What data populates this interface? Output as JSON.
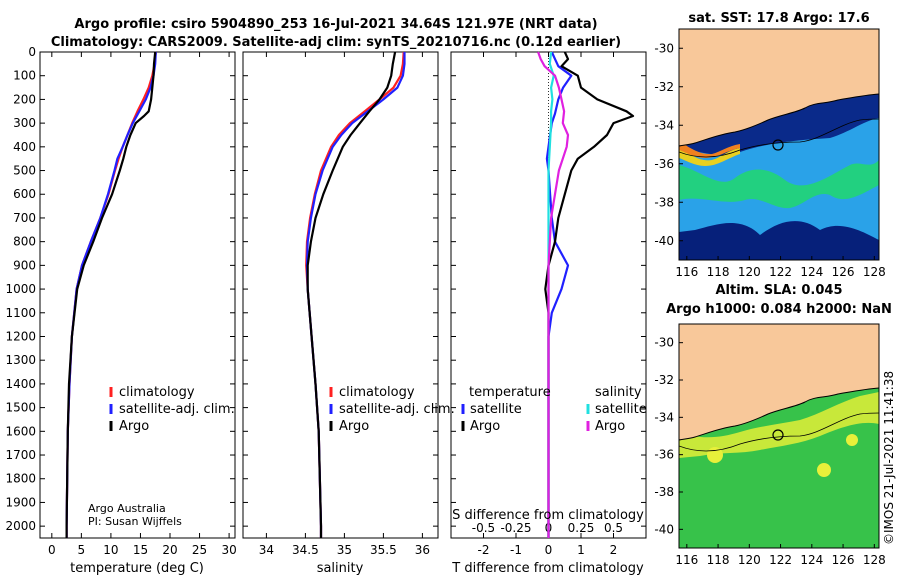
{
  "header": {
    "title_line1": "Argo profile: csiro 5904890_253 16-Jul-2021 34.64S 121.97E (NRT data)",
    "title_line2": "Climatology: CARS2009. Satellite-adj clim: synTS_20210716.nc (0.12d earlier)"
  },
  "footer": {
    "credit_line1": "Argo Australia",
    "credit_line2": "PI: Susan Wijffels",
    "stamp": "©IMOS 21-Jul-2021 11:41:38"
  },
  "legends": {
    "temperature": [
      "climatology",
      "satellite-adj. clim.",
      "Argo"
    ],
    "salinity": [
      "climatology",
      "satellite-adj. clim.",
      "Argo"
    ],
    "difference": {
      "temperature_header": "temperature",
      "salinity_header": "salinity",
      "temperature_items": [
        "satellite",
        "Argo"
      ],
      "salinity_items": [
        "satellite",
        "Argo"
      ]
    }
  },
  "maps": {
    "sst_title": "sat. SST: 17.8 Argo: 17.6",
    "sla_title_line1": "Altim. SLA: 0.045",
    "sla_title_line2": "Argo h1000: 0.084 h2000: NaN",
    "lon_ticks": [
      "116",
      "118",
      "120",
      "122",
      "124",
      "126",
      "128"
    ],
    "lat_ticks": [
      "-30",
      "-32",
      "-34",
      "-36",
      "-38",
      "-40"
    ],
    "float_position": {
      "lon": 121.97,
      "lat": -34.64
    },
    "lon_range": [
      115.5,
      128.3
    ],
    "lat_range": [
      -41,
      -29
    ],
    "colors": {
      "land": "#f8c89a",
      "ocean_sst": "#0a2a8a",
      "ocean_sla": "#37c24a"
    }
  },
  "colors": {
    "climatology": "#ff2020",
    "satellite": "#2020ff",
    "argo": "#000000",
    "sat_salinity": "#20e0e0",
    "argo_salinity": "#e020e0"
  },
  "chart_data": [
    {
      "type": "line",
      "name": "temperature",
      "xlabel": "temperature (deg C)",
      "ylabel": "",
      "xlim": [
        -2,
        31
      ],
      "ylim": [
        2050,
        0
      ],
      "xticks": [
        0,
        5,
        10,
        15,
        20,
        25,
        30
      ],
      "yticks": [
        0,
        100,
        200,
        300,
        400,
        500,
        600,
        700,
        800,
        900,
        1000,
        1100,
        1200,
        1300,
        1400,
        1500,
        1600,
        1700,
        1800,
        1900,
        2000
      ],
      "series": [
        {
          "name": "climatology",
          "color": "#ff2020",
          "y": [
            0,
            50,
            100,
            150,
            200,
            250,
            300,
            350,
            400,
            450,
            500,
            600,
            700,
            800,
            900,
            1000,
            1200,
            1400,
            1600,
            2000,
            2050
          ],
          "x": [
            17.6,
            17.4,
            17.0,
            16.4,
            15.5,
            14.5,
            13.6,
            12.8,
            12.0,
            11.3,
            10.7,
            9.6,
            8.2,
            6.6,
            5.1,
            4.2,
            3.4,
            3.0,
            2.7,
            2.5,
            2.5
          ]
        },
        {
          "name": "satellite-adj. clim.",
          "color": "#2020ff",
          "y": [
            0,
            50,
            100,
            150,
            200,
            250,
            300,
            350,
            400,
            450,
            500,
            600,
            700,
            800,
            900,
            1000,
            1200,
            1400,
            1600,
            2000,
            2050
          ],
          "x": [
            17.6,
            17.5,
            17.2,
            16.7,
            15.9,
            14.8,
            13.7,
            12.8,
            12.0,
            11.1,
            10.6,
            9.5,
            8.2,
            6.6,
            5.1,
            4.2,
            3.4,
            3.0,
            2.7,
            2.5,
            2.5
          ]
        },
        {
          "name": "Argo",
          "color": "#000000",
          "y": [
            0,
            50,
            100,
            150,
            200,
            250,
            270,
            300,
            350,
            400,
            450,
            500,
            600,
            700,
            800,
            900,
            1000,
            1200,
            1400,
            1600,
            2000,
            2050
          ],
          "x": [
            17.5,
            17.3,
            17.2,
            17.0,
            16.8,
            16.4,
            15.6,
            14.2,
            13.3,
            12.6,
            12.1,
            11.5,
            10.2,
            8.5,
            7.0,
            5.4,
            4.3,
            3.4,
            2.9,
            2.7,
            2.5,
            2.5
          ]
        }
      ]
    },
    {
      "type": "line",
      "name": "salinity",
      "xlabel": "salinity",
      "ylabel": "",
      "xlim": [
        33.7,
        36.2
      ],
      "ylim": [
        2050,
        0
      ],
      "xticks": [
        34,
        34.5,
        35,
        35.5,
        36
      ],
      "series": [
        {
          "name": "climatology",
          "color": "#ff2020",
          "y": [
            0,
            50,
            100,
            150,
            200,
            250,
            300,
            350,
            400,
            500,
            600,
            700,
            800,
            900,
            1000,
            1200,
            1400,
            1600,
            2000,
            2050
          ],
          "x": [
            35.76,
            35.75,
            35.72,
            35.63,
            35.45,
            35.26,
            35.07,
            34.93,
            34.83,
            34.7,
            34.62,
            34.56,
            34.52,
            34.51,
            34.53,
            34.58,
            34.63,
            34.67,
            34.7,
            34.7
          ]
        },
        {
          "name": "satellite-adj. clim.",
          "color": "#2020ff",
          "y": [
            0,
            50,
            100,
            150,
            200,
            250,
            300,
            350,
            400,
            500,
            600,
            700,
            800,
            900,
            1000,
            1200,
            1400,
            1600,
            2000,
            2050
          ],
          "x": [
            35.77,
            35.77,
            35.75,
            35.68,
            35.5,
            35.3,
            35.1,
            34.96,
            34.85,
            34.72,
            34.63,
            34.57,
            34.53,
            34.52,
            34.53,
            34.58,
            34.63,
            34.67,
            34.7,
            34.7
          ]
        },
        {
          "name": "Argo",
          "color": "#000000",
          "y": [
            0,
            50,
            100,
            150,
            200,
            250,
            300,
            350,
            400,
            500,
            600,
            700,
            800,
            900,
            1000,
            1200,
            1400,
            1600,
            2000,
            2050
          ],
          "x": [
            35.65,
            35.62,
            35.6,
            35.55,
            35.45,
            35.32,
            35.2,
            35.08,
            34.98,
            34.85,
            34.73,
            34.63,
            34.57,
            34.53,
            34.53,
            34.58,
            34.63,
            34.67,
            34.7,
            34.7
          ]
        }
      ]
    },
    {
      "type": "line",
      "name": "difference",
      "xlabel": "T difference from climatology",
      "top_label": "S difference from climatology",
      "xlim": [
        -3,
        3
      ],
      "ylim": [
        2050,
        0
      ],
      "xticks": [
        -2,
        -1,
        0,
        1,
        2
      ],
      "top_ticks": [
        -0.5,
        -0.25,
        0,
        0.25,
        0.5
      ],
      "top_scale": 4,
      "series": [
        {
          "name": "temperature satellite",
          "color": "#2020ff",
          "y": [
            0,
            30,
            60,
            100,
            150,
            200,
            260,
            300,
            350,
            400,
            450,
            500,
            600,
            700,
            800,
            900,
            1000,
            1100,
            1200,
            1400,
            1600,
            2000,
            2050
          ],
          "x": [
            0.1,
            0.2,
            0.3,
            0.7,
            0.45,
            0.3,
            0.2,
            0.1,
            0.05,
            0.0,
            -0.05,
            0.0,
            0.05,
            0.1,
            0.2,
            0.6,
            0.4,
            0.1,
            0.0,
            0.0,
            0.0,
            0.0,
            0.0
          ]
        },
        {
          "name": "temperature Argo",
          "color": "#000000",
          "y": [
            0,
            30,
            60,
            100,
            150,
            200,
            250,
            270,
            300,
            350,
            400,
            450,
            500,
            600,
            700,
            800,
            900,
            1000,
            1100,
            1200,
            1400,
            1600,
            2000,
            2050
          ],
          "x": [
            0.5,
            0.6,
            0.4,
            0.9,
            1.0,
            1.5,
            2.4,
            2.6,
            2.0,
            1.8,
            1.4,
            0.9,
            0.7,
            0.5,
            0.3,
            0.2,
            0.0,
            -0.1,
            0.0,
            0.0,
            0.0,
            0.0,
            0.0,
            0.0
          ]
        },
        {
          "name": "salinity satellite",
          "color": "#20e0e0",
          "y": [
            0,
            50,
            100,
            150,
            200,
            250,
            300,
            400,
            500,
            600,
            800,
            1000,
            1200,
            1400,
            1600,
            2000,
            2050
          ],
          "x": [
            0.02,
            0.01,
            0.04,
            0.02,
            0.03,
            0.02,
            0.02,
            0.01,
            0.0,
            0.0,
            0.0,
            0.0,
            0.0,
            0.0,
            0.0,
            0.0,
            0.0
          ]
        },
        {
          "name": "salinity Argo",
          "color": "#e020e0",
          "y": [
            0,
            30,
            60,
            100,
            150,
            200,
            250,
            300,
            350,
            400,
            450,
            500,
            600,
            700,
            800,
            900,
            1000,
            1200,
            1400,
            1600,
            2000,
            2050
          ],
          "x": [
            -0.08,
            -0.06,
            -0.03,
            0.05,
            0.08,
            0.1,
            0.12,
            0.11,
            0.15,
            0.14,
            0.11,
            0.08,
            0.05,
            0.02,
            0.01,
            0.0,
            0.0,
            0.0,
            0.0,
            0.0,
            0.0,
            0.0
          ]
        }
      ]
    }
  ]
}
